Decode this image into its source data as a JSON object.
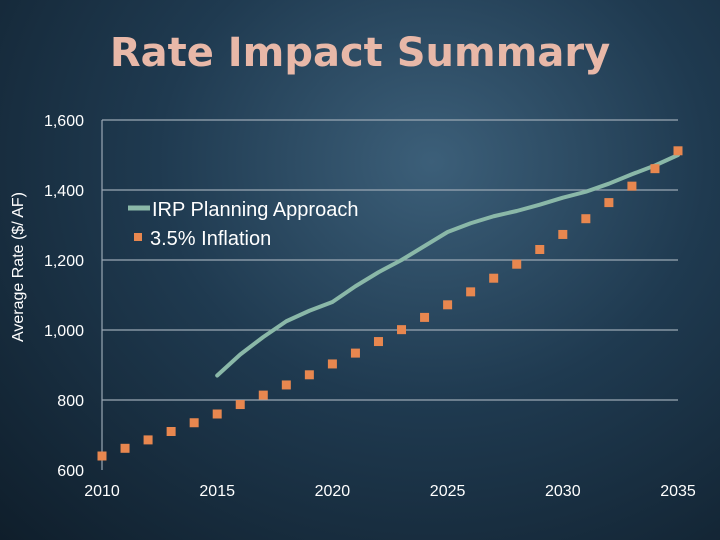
{
  "chart_data": {
    "type": "line",
    "title": "Rate Impact Summary",
    "xlabel": "",
    "ylabel": "Average Rate ($/ AF)",
    "xlim": [
      2010,
      2035
    ],
    "ylim": [
      600,
      1600
    ],
    "x_ticks": [
      "2010",
      "2015",
      "2020",
      "2025",
      "2030",
      "2035"
    ],
    "y_ticks": [
      "600",
      "800",
      "1,000",
      "1,200",
      "1,400",
      "1,600"
    ],
    "grid": true,
    "legend_position": "upper-left",
    "series": [
      {
        "name": "IRP Planning Approach",
        "style": "line",
        "color": "#8ab8a8",
        "x": [
          2015,
          2016,
          2017,
          2018,
          2019,
          2020,
          2021,
          2022,
          2023,
          2024,
          2025,
          2026,
          2027,
          2028,
          2029,
          2030,
          2031,
          2032,
          2033,
          2034,
          2035
        ],
        "values": [
          870,
          930,
          980,
          1025,
          1055,
          1080,
          1125,
          1165,
          1200,
          1240,
          1280,
          1305,
          1325,
          1340,
          1358,
          1378,
          1395,
          1418,
          1445,
          1470,
          1500
        ]
      },
      {
        "name": "3.5% Inflation",
        "style": "marker",
        "color": "#e8874f",
        "x": [
          2010,
          2011,
          2012,
          2013,
          2014,
          2015,
          2016,
          2017,
          2018,
          2019,
          2020,
          2021,
          2022,
          2023,
          2024,
          2025,
          2026,
          2027,
          2028,
          2029,
          2030,
          2031,
          2032,
          2033,
          2034,
          2035
        ],
        "values": [
          640,
          662,
          686,
          710,
          735,
          760,
          787,
          814,
          843,
          872,
          903,
          934,
          967,
          1001,
          1036,
          1072,
          1109,
          1148,
          1188,
          1230,
          1273,
          1318,
          1364,
          1411,
          1461,
          1512
        ]
      }
    ]
  }
}
